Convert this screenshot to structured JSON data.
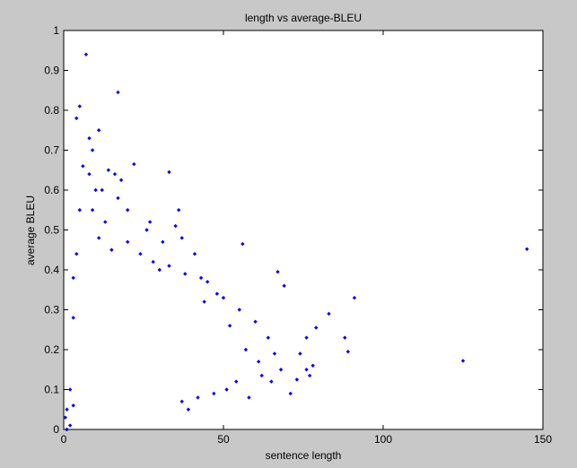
{
  "chart_data": {
    "type": "scatter",
    "title": "length vs average-BLEU",
    "xlabel": "sentence length",
    "ylabel": "average BLEU",
    "xlim": [
      0,
      150
    ],
    "ylim": [
      0,
      1
    ],
    "xticks": [
      0,
      50,
      100,
      150
    ],
    "yticks": [
      0,
      0.1,
      0.2,
      0.3,
      0.4,
      0.5,
      0.6,
      0.7,
      0.8,
      0.9,
      1
    ],
    "xtick_labels": [
      "0",
      "50",
      "100",
      "150"
    ],
    "ytick_labels": [
      "0",
      "0.1",
      "0.2",
      "0.3",
      "0.4",
      "0.5",
      "0.6",
      "0.7",
      "0.8",
      "0.9",
      "1"
    ],
    "grid": false,
    "legend": "none",
    "marker_color": "#0000ff",
    "background_color": "#c8c8c8",
    "plot_background": "#ffffff",
    "series": [
      {
        "points": [
          [
            7,
            0.94
          ],
          [
            5,
            0.81
          ],
          [
            4,
            0.78
          ],
          [
            17,
            0.845
          ],
          [
            11,
            0.75
          ],
          [
            8,
            0.73
          ],
          [
            9,
            0.7
          ],
          [
            22,
            0.665
          ],
          [
            33,
            0.645
          ],
          [
            16,
            0.64
          ],
          [
            18,
            0.625
          ],
          [
            14,
            0.65
          ],
          [
            6,
            0.66
          ],
          [
            8,
            0.64
          ],
          [
            12,
            0.6
          ],
          [
            10,
            0.6
          ],
          [
            36,
            0.55
          ],
          [
            20,
            0.55
          ],
          [
            27,
            0.52
          ],
          [
            17,
            0.58
          ],
          [
            26,
            0.5
          ],
          [
            37,
            0.48
          ],
          [
            31,
            0.47
          ],
          [
            56,
            0.465
          ],
          [
            41,
            0.44
          ],
          [
            35,
            0.51
          ],
          [
            67,
            0.395
          ],
          [
            69,
            0.36
          ],
          [
            91,
            0.33
          ],
          [
            83,
            0.29
          ],
          [
            79,
            0.255
          ],
          [
            88,
            0.23
          ],
          [
            89,
            0.195
          ],
          [
            76,
            0.23
          ],
          [
            74,
            0.19
          ],
          [
            76,
            0.15
          ],
          [
            78,
            0.16
          ],
          [
            77,
            0.135
          ],
          [
            71,
            0.09
          ],
          [
            73,
            0.125
          ],
          [
            65,
            0.12
          ],
          [
            62,
            0.135
          ],
          [
            58,
            0.08
          ],
          [
            125,
            0.172
          ],
          [
            145,
            0.452
          ],
          [
            4,
            0.44
          ],
          [
            3,
            0.38
          ],
          [
            3,
            0.28
          ],
          [
            60,
            0.27
          ],
          [
            64,
            0.23
          ],
          [
            55,
            0.3
          ],
          [
            50,
            0.33
          ],
          [
            48,
            0.34
          ],
          [
            45,
            0.37
          ],
          [
            44,
            0.32
          ],
          [
            52,
            0.26
          ],
          [
            57,
            0.2
          ],
          [
            61,
            0.17
          ],
          [
            66,
            0.19
          ],
          [
            68,
            0.15
          ],
          [
            54,
            0.12
          ],
          [
            51,
            0.1
          ],
          [
            47,
            0.09
          ],
          [
            42,
            0.08
          ],
          [
            39,
            0.05
          ],
          [
            37,
            0.07
          ],
          [
            1,
            0.0
          ],
          [
            2,
            0.01
          ],
          [
            1,
            0.05
          ],
          [
            2,
            0.1
          ],
          [
            0.5,
            0.03
          ],
          [
            3,
            0.06
          ],
          [
            9,
            0.55
          ],
          [
            13,
            0.52
          ],
          [
            5,
            0.55
          ],
          [
            11,
            0.48
          ],
          [
            15,
            0.45
          ],
          [
            20,
            0.47
          ],
          [
            24,
            0.44
          ],
          [
            28,
            0.42
          ],
          [
            30,
            0.4
          ],
          [
            33,
            0.41
          ],
          [
            38,
            0.39
          ],
          [
            43,
            0.38
          ]
        ]
      }
    ]
  }
}
